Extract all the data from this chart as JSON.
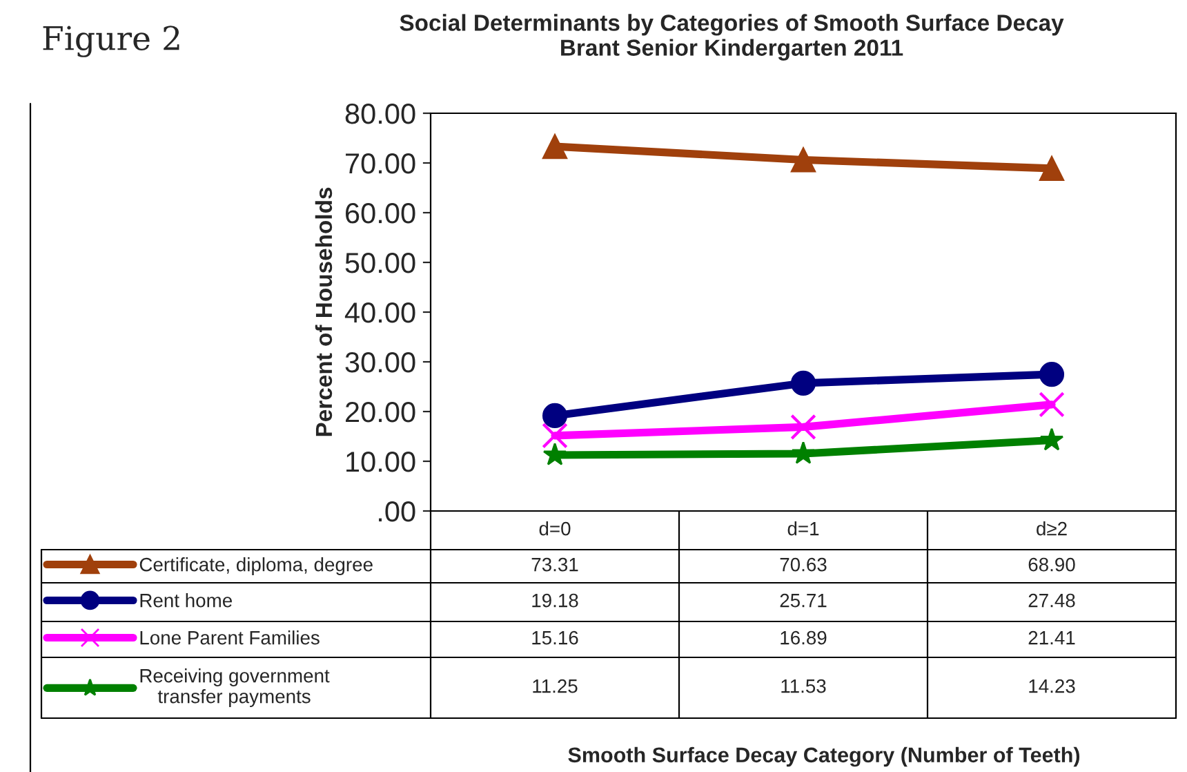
{
  "chart_data": {
    "type": "line",
    "title": "Social Determinants by Categories of Smooth Surface Decay\nBrant Senior Kindergarten 2011",
    "ylabel": "Percent of Households",
    "annotations": [
      "Figure 2",
      "Smooth Surface Decay Category (Number of Teeth)"
    ],
    "categories": [
      "d=0",
      "d=1",
      "d≥2"
    ],
    "series": [
      {
        "name": "Certificate, diploma, degree",
        "color": "#a0400c",
        "marker": "triangle",
        "values": [
          73.31,
          70.63,
          68.9
        ],
        "value_labels": [
          "73.31",
          "70.63",
          "68.90"
        ]
      },
      {
        "name": "Rent home",
        "color": "#000080",
        "marker": "circle",
        "values": [
          19.18,
          25.71,
          27.48
        ],
        "value_labels": [
          "19.18",
          "25.71",
          "27.48"
        ]
      },
      {
        "name": "Lone Parent Families",
        "color": "#ff00ff",
        "marker": "cross",
        "values": [
          15.16,
          16.89,
          21.41
        ],
        "value_labels": [
          "15.16",
          "16.89",
          "21.41"
        ]
      },
      {
        "name": "Receiving government transfer payments",
        "color": "#008000",
        "marker": "star",
        "values": [
          11.25,
          11.53,
          14.23
        ],
        "value_labels": [
          "11.25",
          "11.53",
          "14.23"
        ]
      }
    ],
    "ylim": [
      0,
      80
    ],
    "yticks": [
      {
        "value": 0,
        "label": ".00"
      },
      {
        "value": 10,
        "label": "10.00"
      },
      {
        "value": 20,
        "label": "20.00"
      },
      {
        "value": 30,
        "label": "30.00"
      },
      {
        "value": 40,
        "label": "40.00"
      },
      {
        "value": 50,
        "label": "50.00"
      },
      {
        "value": 60,
        "label": "60.00"
      },
      {
        "value": 70,
        "label": "70.00"
      },
      {
        "value": 80,
        "label": "80.00"
      }
    ],
    "grid": false,
    "legend": "bottom",
    "line_style": "solid"
  }
}
